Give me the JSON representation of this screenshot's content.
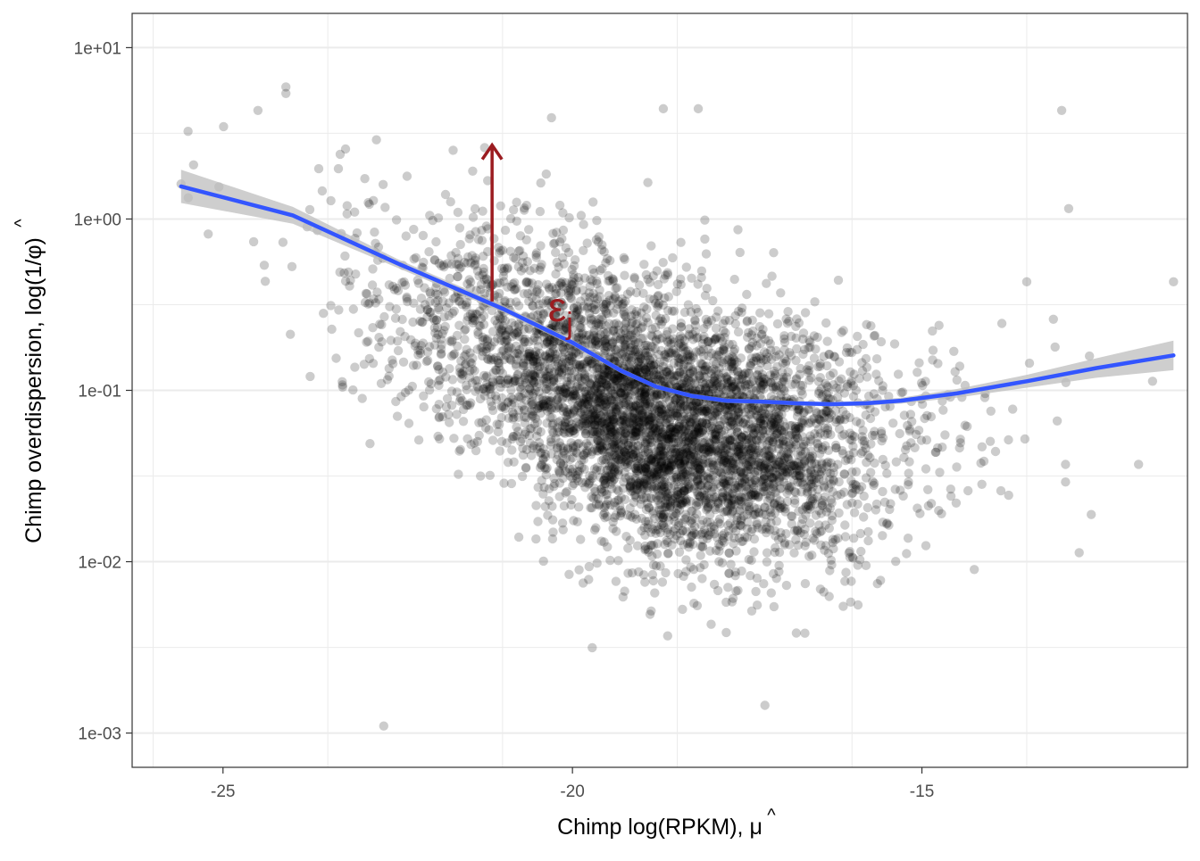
{
  "chart_data": {
    "type": "scatter",
    "title": "",
    "xlabel": "Chimp log(RPKM), μ̂",
    "xlabel_main": "Chimp log(RPKM), ",
    "xlabel_symbol": "μ",
    "ylabel": "Chimp overdispersion, log(1/φ̂)",
    "ylabel_main": "Chimp overdispersion, log(1/",
    "ylabel_symbol": "φ",
    "ylabel_close": ")",
    "xlim": [
      -26.3,
      -11.2
    ],
    "ylim_log10": [
      -3.2,
      1.2
    ],
    "y_scale": "log10",
    "grid": true,
    "x_ticks": [
      -25,
      -20,
      -15
    ],
    "x_tick_labels": [
      "-25",
      "-20",
      "-15"
    ],
    "y_ticks": [
      0.001,
      0.01,
      0.1,
      1,
      10
    ],
    "y_tick_labels": [
      "1e-03",
      "1e-02",
      "1e-01",
      "1e+00",
      "1e+01"
    ],
    "point_color": "#000000",
    "point_alpha": 0.2,
    "point_cloud": {
      "center_x": -18.8,
      "center_y": 0.06,
      "n_points": 5200,
      "x_range": [
        -25.6,
        -11.4
      ],
      "y_range": [
        0.0011,
        6.0
      ]
    },
    "notable_points": [
      {
        "x": -25.5,
        "y": 3.25
      },
      {
        "x": -25.6,
        "y": 1.6
      },
      {
        "x": -24.5,
        "y": 4.3
      },
      {
        "x": -24.1,
        "y": 5.9
      },
      {
        "x": -24.1,
        "y": 5.4
      },
      {
        "x": -22.7,
        "y": 0.0011
      },
      {
        "x": -20.3,
        "y": 3.9
      },
      {
        "x": -18.7,
        "y": 4.4
      },
      {
        "x": -18.2,
        "y": 4.4
      },
      {
        "x": -13.0,
        "y": 4.3
      },
      {
        "x": -11.4,
        "y": 0.43
      },
      {
        "x": -11.7,
        "y": 0.113
      },
      {
        "x": -11.9,
        "y": 0.037
      },
      {
        "x": -13.5,
        "y": 0.43
      },
      {
        "x": -12.9,
        "y": 1.15
      },
      {
        "x": -15.8,
        "y": 0.0095
      }
    ],
    "series": [
      {
        "type": "loess",
        "color": "#3355FF",
        "band_color": "#BDBDBD",
        "x": [
          -25.6,
          -24.0,
          -22.5,
          -21.0,
          -20.0,
          -19.3,
          -18.8,
          -18.3,
          -17.8,
          -17.3,
          -16.8,
          -16.3,
          -15.8,
          -15.3,
          -14.5,
          -13.5,
          -12.5,
          -11.4
        ],
        "y": [
          1.55,
          1.05,
          0.55,
          0.3,
          0.19,
          0.13,
          0.105,
          0.093,
          0.087,
          0.086,
          0.084,
          0.083,
          0.084,
          0.087,
          0.096,
          0.113,
          0.135,
          0.16
        ],
        "se_factor": [
          1.25,
          1.12,
          1.06,
          1.05,
          1.04,
          1.035,
          1.03,
          1.03,
          1.03,
          1.03,
          1.03,
          1.03,
          1.035,
          1.04,
          1.06,
          1.09,
          1.14,
          1.22
        ]
      }
    ],
    "annotations": [
      {
        "type": "arrow",
        "color": "#9B1C20",
        "x": -21.15,
        "y_from": 0.33,
        "y_to": 2.7
      },
      {
        "type": "label",
        "text": "ε",
        "subscript": "j",
        "color": "#9B1C20",
        "x": -20.35,
        "y": 0.3
      }
    ]
  }
}
